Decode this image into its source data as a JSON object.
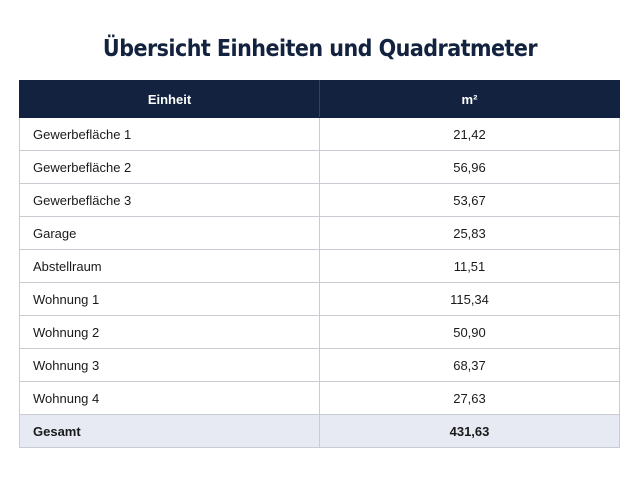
{
  "title": "Übersicht Einheiten und Quadratmeter",
  "table": {
    "headers": [
      "Einheit",
      "m²"
    ],
    "rows": [
      {
        "unit": "Gewerbefläche 1",
        "value": "21,42"
      },
      {
        "unit": "Gewerbefläche 2",
        "value": "56,96"
      },
      {
        "unit": "Gewerbefläche 3",
        "value": "53,67"
      },
      {
        "unit": "Garage",
        "value": "25,83"
      },
      {
        "unit": "Abstellraum",
        "value": "11,51"
      },
      {
        "unit": "Wohnung 1",
        "value": "115,34"
      },
      {
        "unit": "Wohnung 2",
        "value": "50,90"
      },
      {
        "unit": "Wohnung 3",
        "value": "68,37"
      },
      {
        "unit": "Wohnung 4",
        "value": "27,63"
      }
    ],
    "total": {
      "label": "Gesamt",
      "value": "431,63"
    }
  },
  "colors": {
    "header_background": "#13233f",
    "title_color": "#13233f",
    "total_row_background": "#e7eaf2"
  }
}
